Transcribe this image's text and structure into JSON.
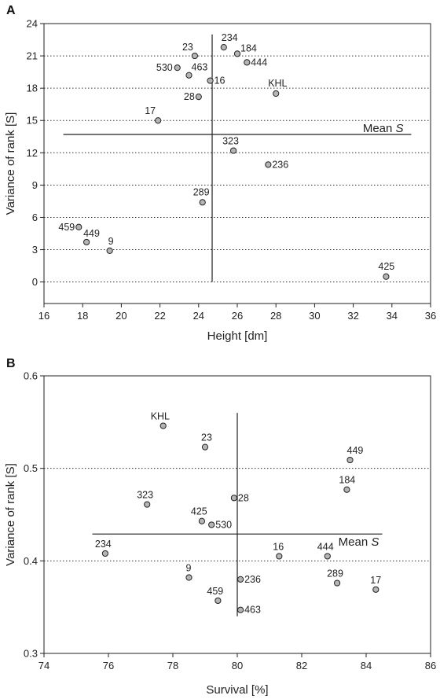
{
  "chart_data": [
    {
      "panel": "A",
      "type": "scatter",
      "xlabel": "Height [dm]",
      "ylabel": "Variance of rank [S]",
      "xlim": [
        16,
        36
      ],
      "ylim": [
        -2,
        24
      ],
      "xticks": [
        16,
        18,
        20,
        22,
        24,
        26,
        28,
        30,
        32,
        34,
        36
      ],
      "yticks": [
        0,
        3,
        6,
        9,
        12,
        15,
        18,
        21,
        24
      ],
      "grid": "dotted horizontal",
      "mean_label_prefix": "Mean ",
      "mean_label_var": "S",
      "mean_x": 24.7,
      "mean_y": 13.7,
      "points": [
        {
          "label": "234",
          "x": 25.3,
          "y": 21.8
        },
        {
          "label": "23",
          "x": 23.8,
          "y": 21.0
        },
        {
          "label": "184",
          "x": 26.0,
          "y": 21.2
        },
        {
          "label": "444",
          "x": 26.5,
          "y": 20.4
        },
        {
          "label": "530",
          "x": 22.9,
          "y": 19.9
        },
        {
          "label": "463",
          "x": 23.5,
          "y": 19.2
        },
        {
          "label": "16",
          "x": 24.6,
          "y": 18.7
        },
        {
          "label": "KHL",
          "x": 28.0,
          "y": 17.5
        },
        {
          "label": "28",
          "x": 24.0,
          "y": 17.2
        },
        {
          "label": "17",
          "x": 21.9,
          "y": 15.0
        },
        {
          "label": "323",
          "x": 25.8,
          "y": 12.2
        },
        {
          "label": "236",
          "x": 27.6,
          "y": 10.9
        },
        {
          "label": "289",
          "x": 24.2,
          "y": 7.4
        },
        {
          "label": "459",
          "x": 17.8,
          "y": 5.1
        },
        {
          "label": "449",
          "x": 18.2,
          "y": 3.7
        },
        {
          "label": "9",
          "x": 19.4,
          "y": 2.9
        },
        {
          "label": "425",
          "x": 33.7,
          "y": 0.5
        }
      ]
    },
    {
      "panel": "B",
      "type": "scatter",
      "xlabel": "Survival [%]",
      "ylabel": "Variance of rank [S]",
      "xlim": [
        74,
        86
      ],
      "ylim": [
        0.3,
        0.6
      ],
      "xticks": [
        74,
        76,
        78,
        80,
        82,
        84,
        86
      ],
      "yticks": [
        0.3,
        0.4,
        0.5,
        0.6
      ],
      "grid": "dotted horizontal",
      "mean_label_prefix": "Mean ",
      "mean_label_var": "S",
      "mean_x": 80.0,
      "mean_y": 0.429,
      "points": [
        {
          "label": "KHL",
          "x": 77.7,
          "y": 0.546
        },
        {
          "label": "23",
          "x": 79.0,
          "y": 0.523
        },
        {
          "label": "449",
          "x": 83.5,
          "y": 0.509
        },
        {
          "label": "184",
          "x": 83.4,
          "y": 0.477
        },
        {
          "label": "28",
          "x": 79.9,
          "y": 0.468
        },
        {
          "label": "323",
          "x": 77.2,
          "y": 0.461
        },
        {
          "label": "425",
          "x": 78.9,
          "y": 0.443
        },
        {
          "label": "530",
          "x": 79.2,
          "y": 0.439
        },
        {
          "label": "234",
          "x": 75.9,
          "y": 0.408
        },
        {
          "label": "16",
          "x": 81.3,
          "y": 0.405
        },
        {
          "label": "444",
          "x": 82.8,
          "y": 0.405
        },
        {
          "label": "9",
          "x": 78.5,
          "y": 0.382
        },
        {
          "label": "236",
          "x": 80.1,
          "y": 0.38
        },
        {
          "label": "289",
          "x": 83.1,
          "y": 0.376
        },
        {
          "label": "17",
          "x": 84.3,
          "y": 0.369
        },
        {
          "label": "459",
          "x": 79.4,
          "y": 0.357
        },
        {
          "label": "463",
          "x": 80.1,
          "y": 0.347
        }
      ]
    }
  ]
}
